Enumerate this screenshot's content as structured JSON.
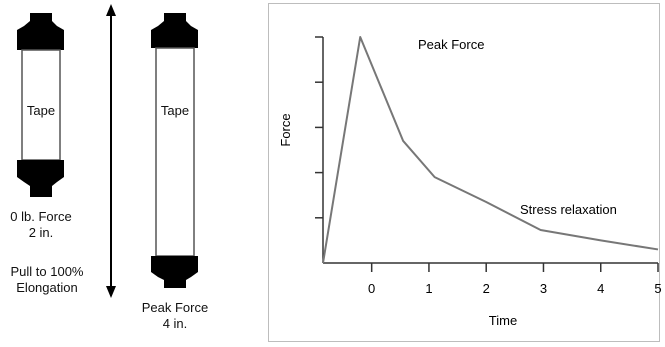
{
  "left": {
    "tape_relaxed": {
      "label": "Tape",
      "caption_line1": "0 lb. Force",
      "caption_line2": "2 in."
    },
    "pull_caption": {
      "line1": "Pull to 100%",
      "line2": "Elongation"
    },
    "tape_stretched": {
      "label": "Tape",
      "caption_line1": "Peak Force",
      "caption_line2": "4 in."
    },
    "colors": {
      "clamp": "#000000",
      "tape_border": "#555555"
    }
  },
  "chart_data": {
    "type": "line",
    "xlabel": "Time",
    "ylabel": "Force",
    "x_ticks": [
      "0",
      "1",
      "2",
      "3",
      "4",
      "5"
    ],
    "y_tick_count": 5,
    "annotations": [
      "Peak Force",
      "Stress relaxation"
    ],
    "series": [
      {
        "x": [
          -0.85,
          -0.2,
          0.55,
          1.1,
          2.0,
          2.95,
          4.0,
          5.0
        ],
        "y": [
          0,
          5.0,
          2.7,
          1.9,
          1.35,
          0.73,
          0.5,
          0.3
        ]
      }
    ],
    "xlim": [
      -0.85,
      5.0
    ],
    "ylim": [
      0,
      5.0
    ],
    "colors": {
      "line": "#777777",
      "axis": "#333333"
    }
  }
}
